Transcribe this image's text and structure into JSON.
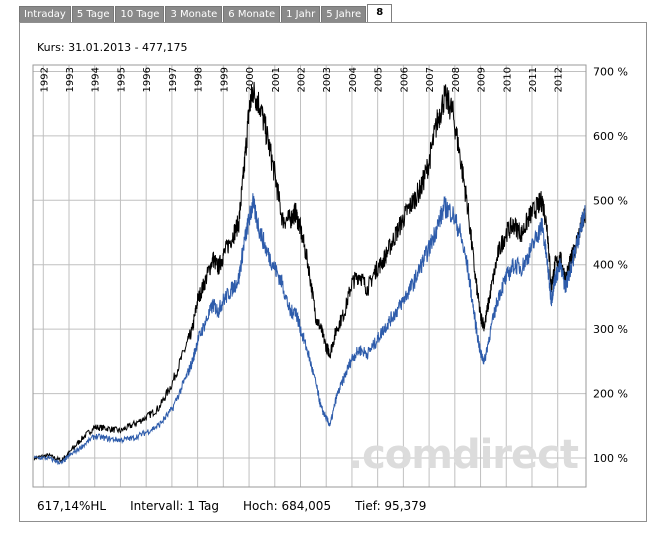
{
  "tabs": [
    "Intraday",
    "5 Tage",
    "10 Tage",
    "3 Monate",
    "6 Monate",
    "1 Jahr",
    "5 Jahre",
    "8"
  ],
  "header": {
    "kurs": "Kurs: 31.01.2013 - 477,175"
  },
  "footer": {
    "performance": "617,14%HL",
    "intervall": "Intervall: 1 Tag",
    "hoch": "Hoch:  684,005",
    "tief": "Tief:  95,379"
  },
  "watermark": ".comdirect",
  "colors": {
    "series_black": "#000000",
    "series_blue": "#2e5cab",
    "grid": "#c0c0c0"
  },
  "chart_data": {
    "type": "line",
    "x_ticks": [
      "1992",
      "1993",
      "1994",
      "1995",
      "1996",
      "1997",
      "1998",
      "1999",
      "2000",
      "2001",
      "2002",
      "2003",
      "2004",
      "2005",
      "2006",
      "2007",
      "2008",
      "2009",
      "2010",
      "2011",
      "2012"
    ],
    "y_ticks": [
      "100 %",
      "200 %",
      "300 %",
      "400 %",
      "500 %",
      "600 %",
      "700 %"
    ],
    "ylim": [
      55,
      710
    ],
    "xlim": [
      1991.6,
      2013.1
    ],
    "grid": true,
    "series": [
      {
        "color": "#000000",
        "points": [
          [
            1991.65,
            100
          ],
          [
            1992.2,
            104
          ],
          [
            1992.7,
            96
          ],
          [
            1993.0,
            108
          ],
          [
            1993.5,
            130
          ],
          [
            1994.0,
            148
          ],
          [
            1994.5,
            146
          ],
          [
            1995.0,
            142
          ],
          [
            1995.5,
            152
          ],
          [
            1996.0,
            163
          ],
          [
            1996.5,
            178
          ],
          [
            1997.0,
            215
          ],
          [
            1997.5,
            268
          ],
          [
            1997.8,
            300
          ],
          [
            1998.0,
            345
          ],
          [
            1998.3,
            375
          ],
          [
            1998.6,
            410
          ],
          [
            1998.8,
            395
          ],
          [
            1999.0,
            415
          ],
          [
            1999.3,
            440
          ],
          [
            1999.6,
            465
          ],
          [
            1999.8,
            545
          ],
          [
            2000.0,
            640
          ],
          [
            2000.15,
            670
          ],
          [
            2000.4,
            650
          ],
          [
            2000.7,
            600
          ],
          [
            2001.0,
            540
          ],
          [
            2001.3,
            470
          ],
          [
            2001.6,
            470
          ],
          [
            2001.8,
            482
          ],
          [
            2002.0,
            455
          ],
          [
            2002.3,
            400
          ],
          [
            2002.6,
            318
          ],
          [
            2002.8,
            300
          ],
          [
            2003.0,
            272
          ],
          [
            2003.15,
            262
          ],
          [
            2003.4,
            300
          ],
          [
            2003.7,
            325
          ],
          [
            2004.0,
            372
          ],
          [
            2004.3,
            385
          ],
          [
            2004.6,
            362
          ],
          [
            2004.9,
            390
          ],
          [
            2005.2,
            405
          ],
          [
            2005.5,
            430
          ],
          [
            2005.8,
            455
          ],
          [
            2006.1,
            480
          ],
          [
            2006.4,
            500
          ],
          [
            2006.7,
            520
          ],
          [
            2007.0,
            560
          ],
          [
            2007.3,
            620
          ],
          [
            2007.6,
            660
          ],
          [
            2007.9,
            640
          ],
          [
            2008.2,
            570
          ],
          [
            2008.5,
            490
          ],
          [
            2008.8,
            380
          ],
          [
            2009.0,
            320
          ],
          [
            2009.15,
            305
          ],
          [
            2009.4,
            360
          ],
          [
            2009.7,
            420
          ],
          [
            2010.0,
            450
          ],
          [
            2010.3,
            462
          ],
          [
            2010.6,
            448
          ],
          [
            2010.9,
            475
          ],
          [
            2011.2,
            490
          ],
          [
            2011.4,
            500
          ],
          [
            2011.6,
            455
          ],
          [
            2011.75,
            365
          ],
          [
            2011.9,
            400
          ],
          [
            2012.1,
            410
          ],
          [
            2012.3,
            378
          ],
          [
            2012.5,
            405
          ],
          [
            2012.7,
            430
          ],
          [
            2012.9,
            458
          ],
          [
            2013.08,
            477
          ]
        ]
      },
      {
        "color": "#2e5cab",
        "points": [
          [
            1991.65,
            100
          ],
          [
            1992.2,
            100
          ],
          [
            1992.7,
            92
          ],
          [
            1993.0,
            103
          ],
          [
            1993.5,
            118
          ],
          [
            1994.0,
            134
          ],
          [
            1994.5,
            130
          ],
          [
            1995.0,
            128
          ],
          [
            1995.5,
            131
          ],
          [
            1996.0,
            140
          ],
          [
            1996.5,
            151
          ],
          [
            1997.0,
            175
          ],
          [
            1997.5,
            220
          ],
          [
            1997.8,
            250
          ],
          [
            1998.0,
            282
          ],
          [
            1998.3,
            310
          ],
          [
            1998.6,
            338
          ],
          [
            1998.8,
            328
          ],
          [
            1999.0,
            345
          ],
          [
            1999.3,
            360
          ],
          [
            1999.6,
            378
          ],
          [
            1999.8,
            432
          ],
          [
            2000.0,
            470
          ],
          [
            2000.15,
            495
          ],
          [
            2000.4,
            455
          ],
          [
            2000.7,
            420
          ],
          [
            2001.0,
            395
          ],
          [
            2001.3,
            370
          ],
          [
            2001.6,
            325
          ],
          [
            2001.8,
            330
          ],
          [
            2002.0,
            300
          ],
          [
            2002.3,
            262
          ],
          [
            2002.6,
            215
          ],
          [
            2002.8,
            178
          ],
          [
            2003.0,
            162
          ],
          [
            2003.15,
            150
          ],
          [
            2003.4,
            195
          ],
          [
            2003.7,
            225
          ],
          [
            2004.0,
            255
          ],
          [
            2004.3,
            268
          ],
          [
            2004.6,
            262
          ],
          [
            2004.9,
            278
          ],
          [
            2005.2,
            298
          ],
          [
            2005.5,
            315
          ],
          [
            2005.8,
            332
          ],
          [
            2006.1,
            352
          ],
          [
            2006.4,
            372
          ],
          [
            2006.7,
            400
          ],
          [
            2007.0,
            425
          ],
          [
            2007.3,
            458
          ],
          [
            2007.6,
            490
          ],
          [
            2007.9,
            480
          ],
          [
            2008.2,
            450
          ],
          [
            2008.5,
            395
          ],
          [
            2008.8,
            310
          ],
          [
            2009.0,
            262
          ],
          [
            2009.15,
            250
          ],
          [
            2009.4,
            300
          ],
          [
            2009.7,
            352
          ],
          [
            2010.0,
            380
          ],
          [
            2010.3,
            400
          ],
          [
            2010.6,
            395
          ],
          [
            2010.9,
            418
          ],
          [
            2011.2,
            445
          ],
          [
            2011.4,
            462
          ],
          [
            2011.6,
            400
          ],
          [
            2011.75,
            345
          ],
          [
            2011.9,
            380
          ],
          [
            2012.1,
            398
          ],
          [
            2012.3,
            365
          ],
          [
            2012.5,
            395
          ],
          [
            2012.7,
            425
          ],
          [
            2012.9,
            458
          ],
          [
            2013.08,
            485
          ]
        ]
      }
    ]
  }
}
